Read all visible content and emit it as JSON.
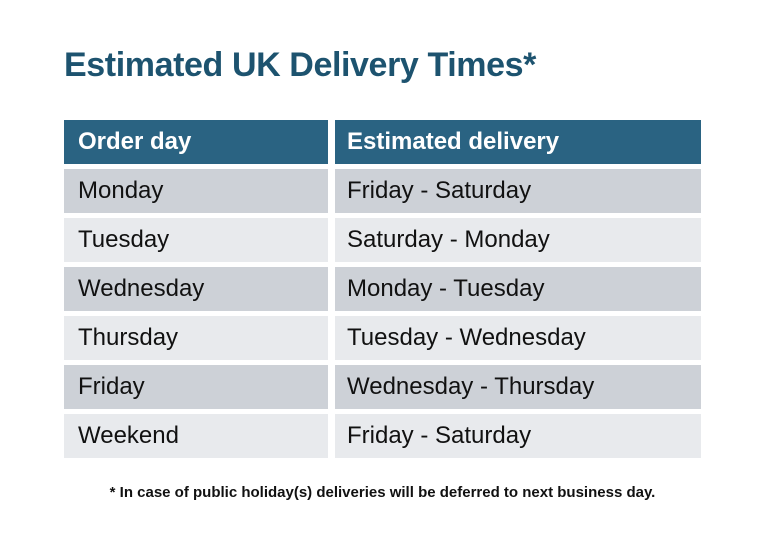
{
  "title": "Estimated UK Delivery Times*",
  "table": {
    "headers": [
      "Order day",
      "Estimated delivery"
    ],
    "rows": [
      {
        "order_day": "Monday",
        "estimated_delivery": "Friday - Saturday"
      },
      {
        "order_day": "Tuesday",
        "estimated_delivery": "Saturday - Monday"
      },
      {
        "order_day": "Wednesday",
        "estimated_delivery": "Monday - Tuesday"
      },
      {
        "order_day": "Thursday",
        "estimated_delivery": "Tuesday - Wednesday"
      },
      {
        "order_day": "Friday",
        "estimated_delivery": "Wednesday - Thursday"
      },
      {
        "order_day": "Weekend",
        "estimated_delivery": "Friday - Saturday"
      }
    ]
  },
  "footnote": "* In case of public holiday(s) deliveries will be deferred to next business day.",
  "colors": {
    "title_color": "#1D536F",
    "header_bg": "#2A6382",
    "header_text": "#FFFFFF",
    "row_dark": "#CDD1D7",
    "row_light": "#E8EAED",
    "body_text": "#111111",
    "page_bg": "#FFFFFF"
  }
}
